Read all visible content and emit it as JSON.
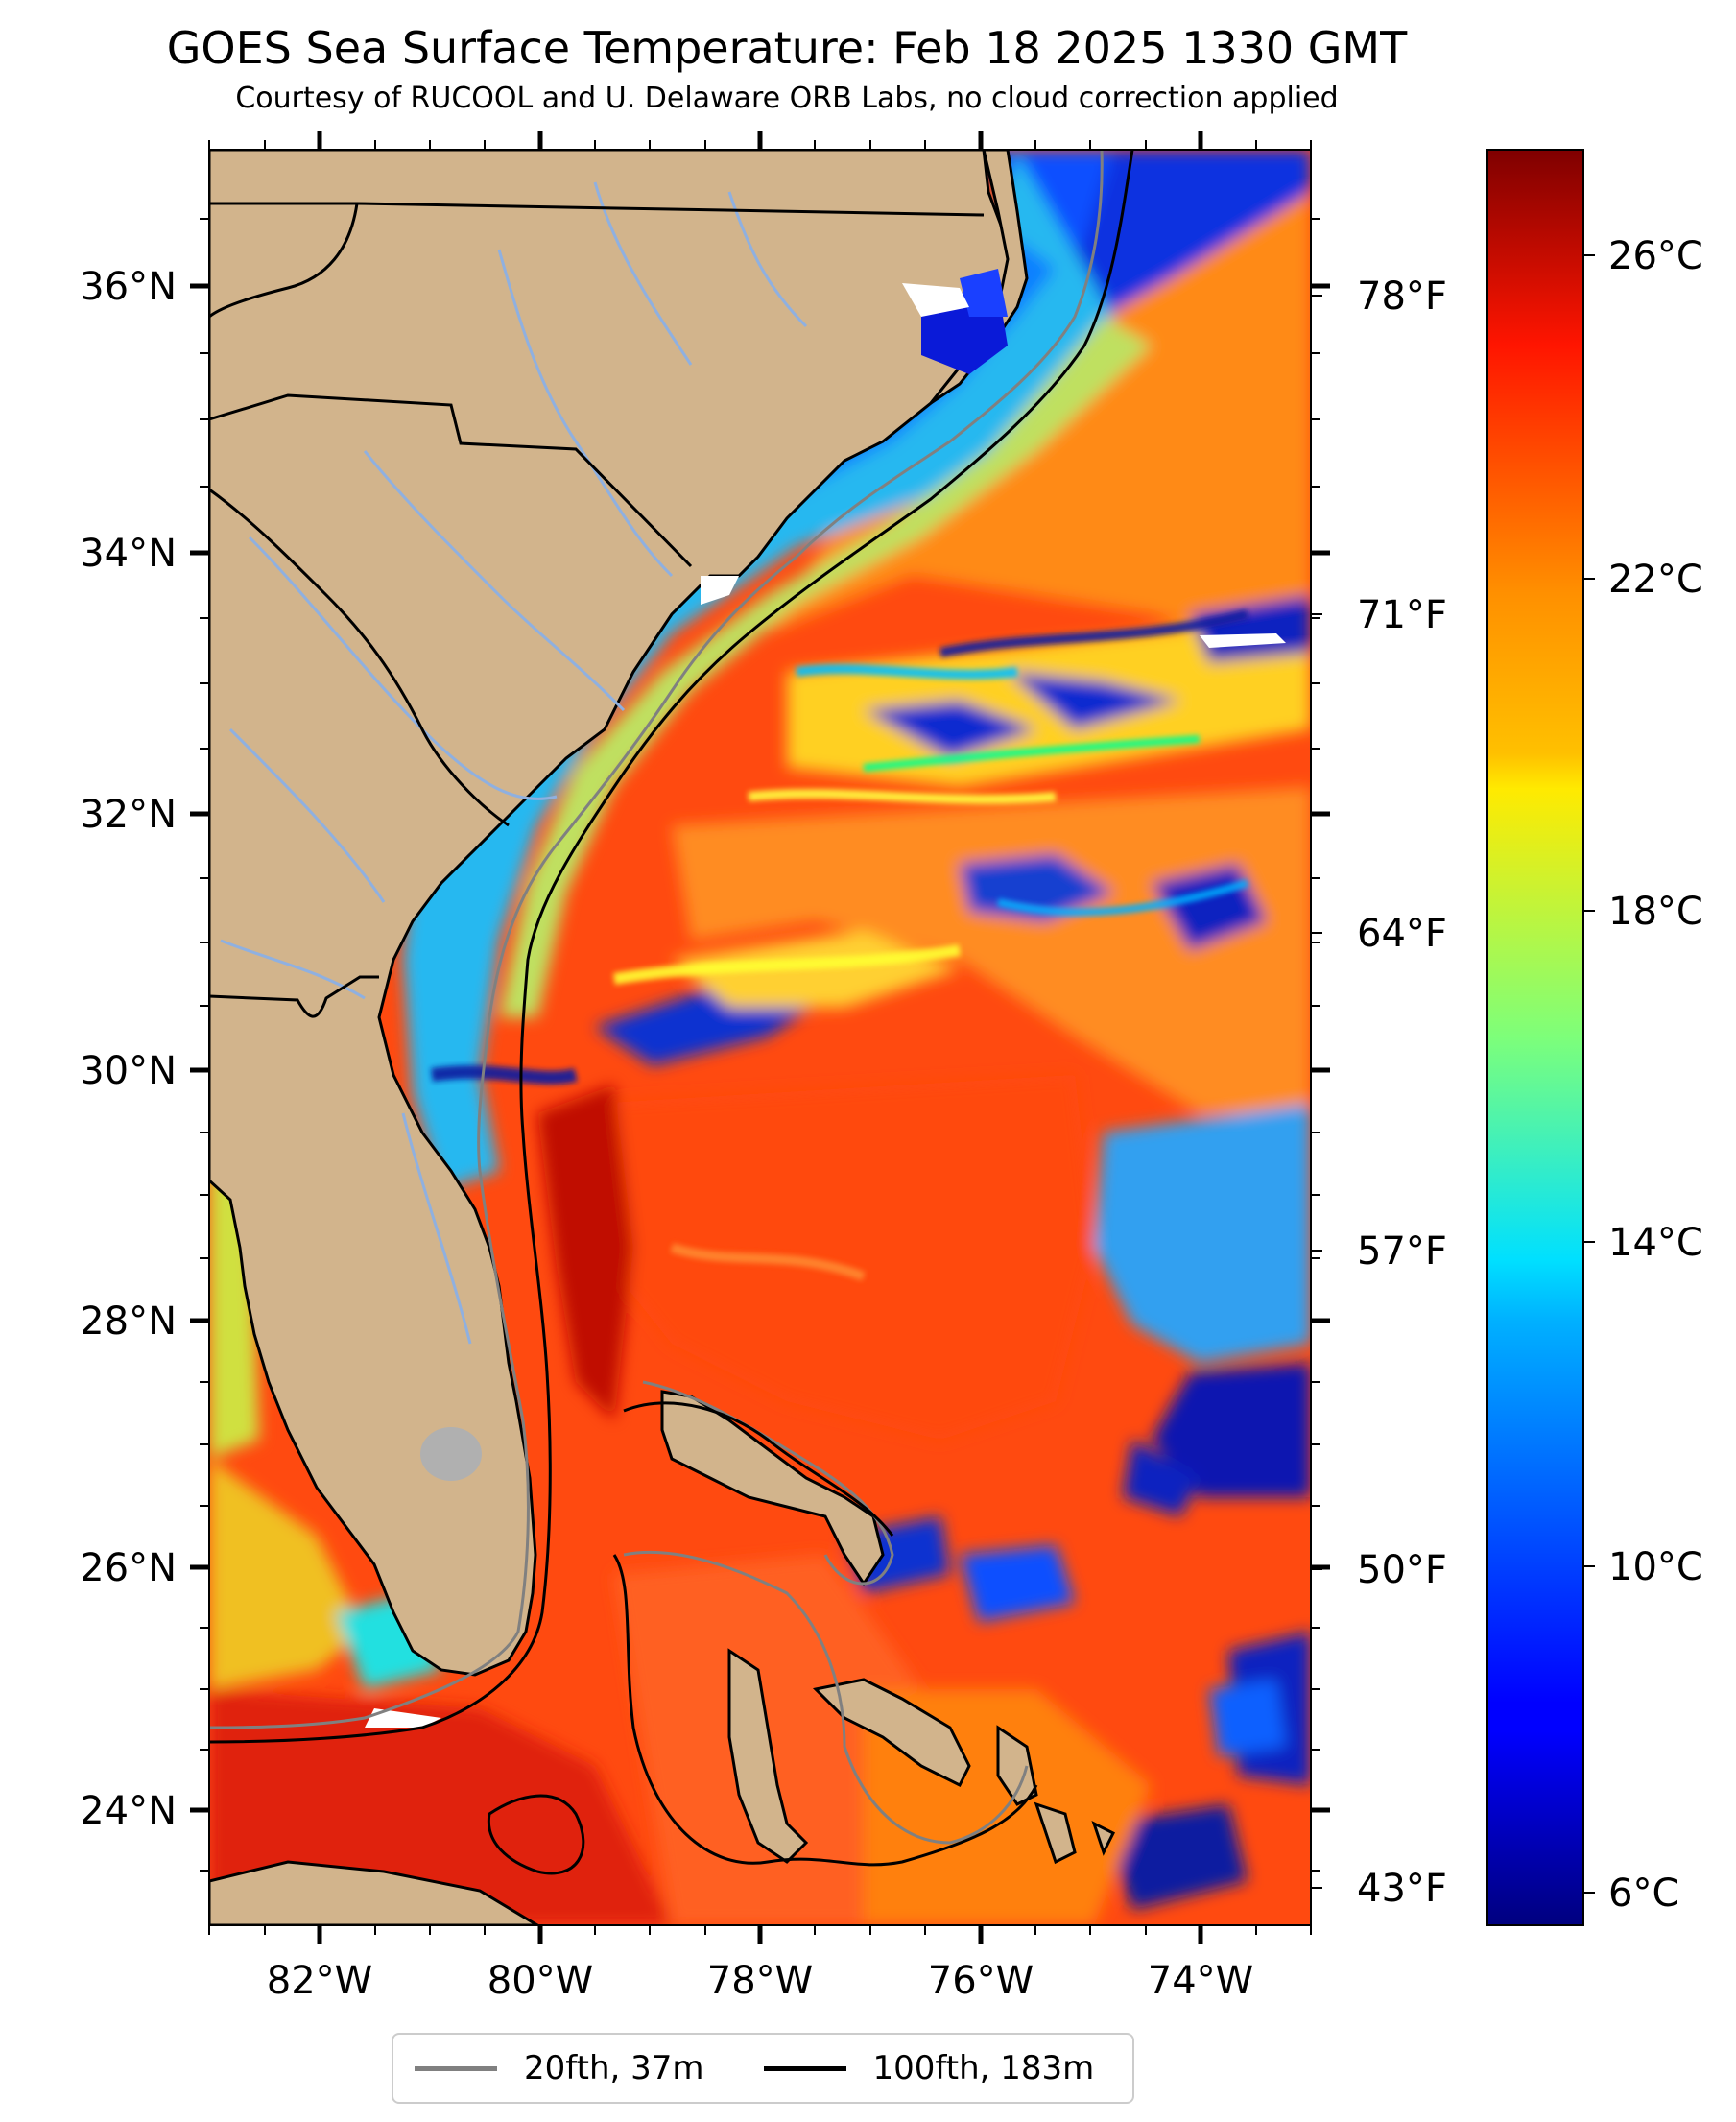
{
  "header": {
    "title": "GOES Sea Surface Temperature: Feb 18 2025 1330 GMT",
    "subtitle": "Courtesy of RUCOOL and U. Delaware ORB Labs, no cloud correction applied"
  },
  "map": {
    "lon_range": [
      -83.0,
      -73.0
    ],
    "lat_range": [
      23.0,
      37.0
    ],
    "lat_labels": [
      "36°N",
      "34°N",
      "32°N",
      "30°N",
      "28°N",
      "26°N",
      "24°N"
    ],
    "lon_labels": [
      "82°W",
      "80°W",
      "78°W",
      "76°W",
      "74°W"
    ],
    "land_color": "#d2b48c",
    "river_color": "#8fb0e0"
  },
  "fahrenheit_axis": {
    "labels": [
      "78°F",
      "71°F",
      "64°F",
      "57°F",
      "50°F",
      "43°F"
    ]
  },
  "colorbar": {
    "colormap": "jet",
    "range_celsius": [
      5.5,
      27.5
    ],
    "labels": [
      "26°C",
      "22°C",
      "18°C",
      "14°C",
      "10°C",
      "6°C"
    ]
  },
  "legend": {
    "items": [
      {
        "label": "20fth, 37m",
        "color": "#808080"
      },
      {
        "label": "100fth, 183m",
        "color": "#000000"
      }
    ]
  }
}
